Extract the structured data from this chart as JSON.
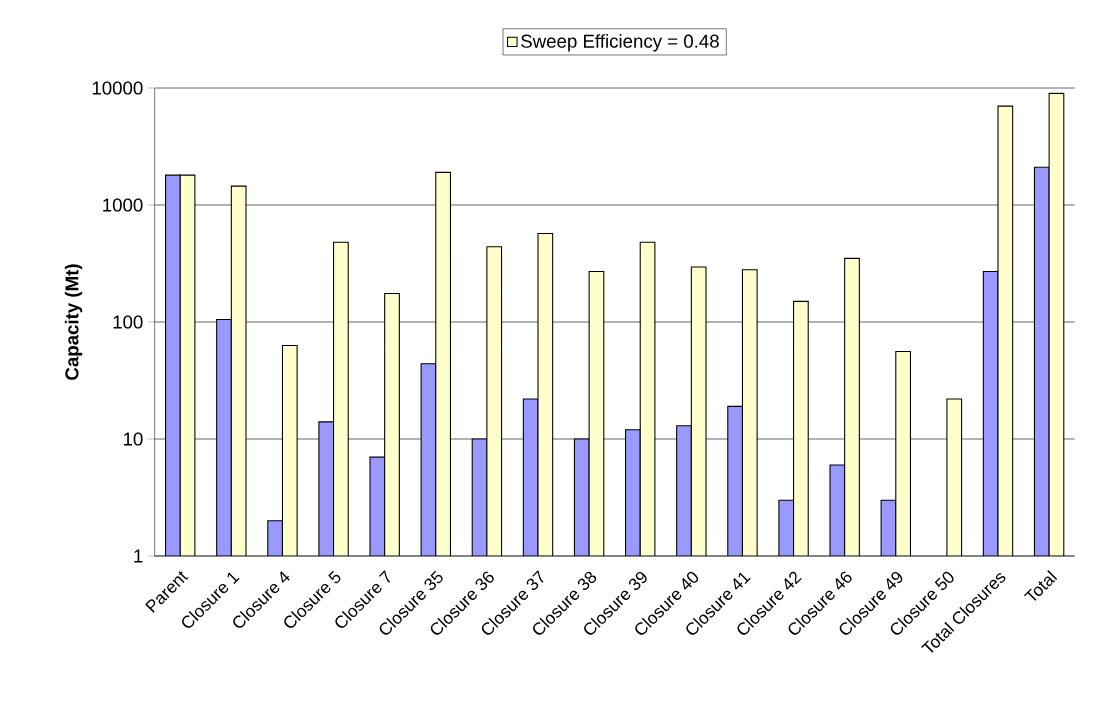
{
  "chart_data": {
    "type": "bar",
    "ylabel": "Capacity (Mt)",
    "categories": [
      "Parent",
      "Closure 1",
      "Closure 4",
      "Closure 5",
      "Closure 7",
      "Closure 35",
      "Closure 36",
      "Closure 37",
      "Closure 38",
      "Closure 39",
      "Closure 40",
      "Closure 41",
      "Closure 42",
      "Closure 46",
      "Closure 49",
      "Closure 50",
      "Total Closures",
      "Total"
    ],
    "series": [
      {
        "color": "#9999ff",
        "values": [
          1800,
          105,
          2,
          14,
          7,
          44,
          10,
          22,
          10,
          12,
          13,
          19,
          3,
          6,
          3,
          null,
          270,
          2100
        ]
      },
      {
        "name": "Sweep Efficiency = 0.48",
        "color": "#ffffcc",
        "values": [
          1800,
          1450,
          63,
          480,
          175,
          1900,
          440,
          570,
          270,
          480,
          295,
          280,
          150,
          350,
          56,
          22,
          7000,
          9000
        ]
      }
    ],
    "log": "y",
    "ylim": [
      1,
      10000
    ],
    "yticks": [
      1,
      10,
      100,
      1000,
      10000
    ],
    "grid": "y",
    "legend": "top"
  }
}
